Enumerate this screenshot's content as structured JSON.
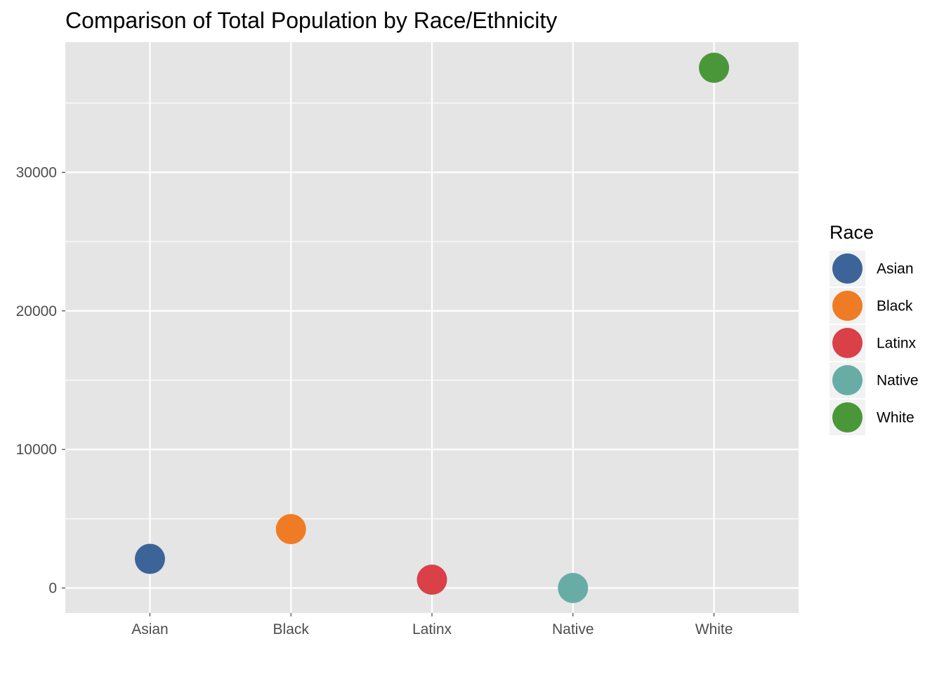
{
  "chart_data": {
    "type": "scatter",
    "title": "Comparison of Total Population by Race/Ethnicity",
    "xlabel": "",
    "ylabel": "",
    "categories": [
      "Asian",
      "Black",
      "Latinx",
      "Native",
      "White"
    ],
    "values": [
      2100,
      4250,
      600,
      0,
      37550
    ],
    "colors": [
      "#3d6498",
      "#ef7c24",
      "#d94048",
      "#67ada6",
      "#4a973a"
    ],
    "y_ticks": [
      0,
      10000,
      20000,
      30000
    ],
    "ylim": [
      -1800,
      39400
    ],
    "grid": true,
    "panel_background": "#e5e5e5",
    "legend": {
      "title": "Race",
      "placement": "right",
      "entries": [
        "Asian",
        "Black",
        "Latinx",
        "Native",
        "White"
      ]
    }
  }
}
